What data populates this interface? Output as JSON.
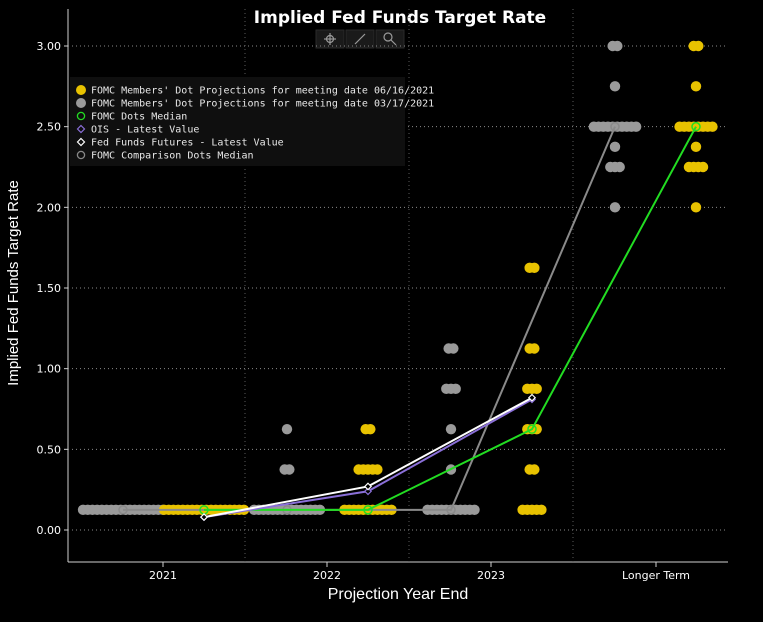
{
  "chart_data": {
    "type": "scatter",
    "title": "Implied Fed Funds Target Rate",
    "xlabel": "Projection Year End",
    "ylabel": "Implied Fed Funds Target Rate",
    "categories": [
      "2021",
      "2022",
      "2023",
      "Longer Term"
    ],
    "ylim": [
      -0.2,
      3.1
    ],
    "yticks": [
      "3.00",
      "2.50",
      "2.00",
      "1.50",
      "1.00",
      "0.50",
      "0.00"
    ],
    "grid": "horizontal dotted",
    "legend_position": "top-left",
    "legend": [
      {
        "name": "FOMC Members' Dot Projections for meeting date 06/16/2021",
        "color": "#e8c200",
        "marker": "dot"
      },
      {
        "name": "FOMC Members' Dot Projections for meeting date 03/17/2021",
        "color": "#9a9a9a",
        "marker": "dot"
      },
      {
        "name": "FOMC Dots Median",
        "color": "#22dd22",
        "marker": "circle"
      },
      {
        "name": "OIS - Latest Value",
        "color": "#8a6fd8",
        "marker": "diamond"
      },
      {
        "name": "Fed Funds Futures - Latest Value",
        "color": "#ffffff",
        "marker": "diamond"
      },
      {
        "name": "FOMC Comparison Dots Median",
        "color": "#888888",
        "marker": "circle"
      }
    ],
    "dots_06_16_2021": [
      {
        "year": "2021",
        "rate": 0.125,
        "count": 18
      },
      {
        "year": "2022",
        "rate": 0.125,
        "count": 11
      },
      {
        "year": "2022",
        "rate": 0.375,
        "count": 5
      },
      {
        "year": "2022",
        "rate": 0.625,
        "count": 2
      },
      {
        "year": "2023",
        "rate": 0.125,
        "count": 5
      },
      {
        "year": "2023",
        "rate": 0.375,
        "count": 2
      },
      {
        "year": "2023",
        "rate": 0.625,
        "count": 3
      },
      {
        "year": "2023",
        "rate": 0.875,
        "count": 3
      },
      {
        "year": "2023",
        "rate": 1.125,
        "count": 2
      },
      {
        "year": "2023",
        "rate": 1.625,
        "count": 2
      },
      {
        "year": "Longer Term",
        "rate": 2.0,
        "count": 1
      },
      {
        "year": "Longer Term",
        "rate": 2.25,
        "count": 4
      },
      {
        "year": "Longer Term",
        "rate": 2.375,
        "count": 1
      },
      {
        "year": "Longer Term",
        "rate": 2.5,
        "count": 8
      },
      {
        "year": "Longer Term",
        "rate": 2.75,
        "count": 1
      },
      {
        "year": "Longer Term",
        "rate": 3.0,
        "count": 2
      }
    ],
    "dots_03_17_2021": [
      {
        "year": "2021",
        "rate": 0.125,
        "count": 18
      },
      {
        "year": "2022",
        "rate": 0.125,
        "count": 15
      },
      {
        "year": "2022",
        "rate": 0.375,
        "count": 2
      },
      {
        "year": "2022",
        "rate": 0.625,
        "count": 1
      },
      {
        "year": "2023",
        "rate": 0.125,
        "count": 11
      },
      {
        "year": "2023",
        "rate": 0.375,
        "count": 1
      },
      {
        "year": "2023",
        "rate": 0.625,
        "count": 1
      },
      {
        "year": "2023",
        "rate": 0.875,
        "count": 3
      },
      {
        "year": "2023",
        "rate": 1.125,
        "count": 2
      },
      {
        "year": "Longer Term",
        "rate": 2.0,
        "count": 1
      },
      {
        "year": "Longer Term",
        "rate": 2.25,
        "count": 3
      },
      {
        "year": "Longer Term",
        "rate": 2.375,
        "count": 1
      },
      {
        "year": "Longer Term",
        "rate": 2.5,
        "count": 10
      },
      {
        "year": "Longer Term",
        "rate": 2.75,
        "count": 1
      },
      {
        "year": "Longer Term",
        "rate": 3.0,
        "count": 2
      }
    ],
    "fomc_dots_median": [
      {
        "year": "2021",
        "rate": 0.125
      },
      {
        "year": "2022",
        "rate": 0.125
      },
      {
        "year": "2023",
        "rate": 0.625
      },
      {
        "year": "Longer Term",
        "rate": 2.5
      }
    ],
    "comparison_dots_median": [
      {
        "year": "2021",
        "rate": 0.125
      },
      {
        "year": "2022",
        "rate": 0.125
      },
      {
        "year": "2023",
        "rate": 0.125
      },
      {
        "year": "Longer Term",
        "rate": 2.5
      }
    ],
    "ois_latest": [
      {
        "year": "2021",
        "rate": 0.08
      },
      {
        "year": "2022",
        "rate": 0.24
      },
      {
        "year": "2023",
        "rate": 0.81
      }
    ],
    "fed_funds_futures_latest": [
      {
        "year": "2021",
        "rate": 0.08
      },
      {
        "year": "2022",
        "rate": 0.27
      },
      {
        "year": "2023",
        "rate": 0.82
      }
    ],
    "colors": {
      "dots_new": "#e8c200",
      "dots_old": "#9a9a9a",
      "median": "#22dd22",
      "comparison": "#8a8a8a",
      "ois": "#8a6fd8",
      "futures": "#ffffff"
    }
  },
  "toolbar": {
    "icons": [
      "crosshair-icon",
      "pencil-icon",
      "magnifier-icon"
    ]
  }
}
